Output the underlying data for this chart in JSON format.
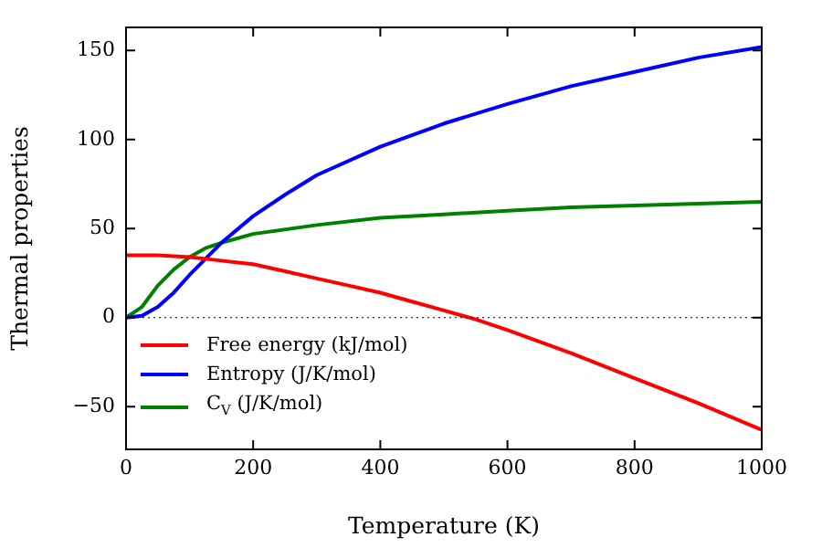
{
  "chart_data": {
    "type": "line",
    "xlabel": "Temperature (K)",
    "ylabel": "Thermal properties",
    "xlim": [
      0,
      1000
    ],
    "xticks": [
      0,
      200,
      400,
      600,
      800,
      1000
    ],
    "ylim": [
      -74,
      163
    ],
    "yticks": [
      -50,
      0,
      50,
      100,
      150
    ],
    "grid": false,
    "legend": "bottom left",
    "marker": "none",
    "line_style": "solid",
    "ref_lines": [
      {
        "axis": "y",
        "value": 0,
        "color": "#000000",
        "line_style": "dotted"
      }
    ],
    "series": [
      {
        "name": "Free energy (kJ/mol)",
        "color": "#ff0000",
        "x": [
          0,
          50,
          100,
          150,
          200,
          250,
          300,
          350,
          400,
          450,
          500,
          550,
          600,
          700,
          800,
          900,
          1000
        ],
        "values": [
          35,
          35,
          34,
          32,
          30,
          26,
          22,
          18,
          14,
          9,
          4,
          -1,
          -7,
          -20,
          -34,
          -48,
          -63
        ]
      },
      {
        "name": "Entropy (J/K/mol)",
        "color": "#0000ff",
        "x": [
          0,
          25,
          50,
          75,
          100,
          125,
          150,
          200,
          250,
          300,
          400,
          500,
          600,
          700,
          800,
          900,
          1000
        ],
        "values": [
          0,
          1,
          6,
          14,
          24,
          33,
          42,
          57,
          69,
          80,
          96,
          109,
          120,
          130,
          138,
          146,
          152
        ]
      },
      {
        "name": "C$_{V}$ (J/K/mol)",
        "color": "#008000",
        "x": [
          0,
          25,
          50,
          75,
          100,
          125,
          150,
          200,
          300,
          400,
          500,
          600,
          700,
          800,
          900,
          1000
        ],
        "values": [
          0,
          6,
          18,
          27,
          34,
          39,
          42,
          47,
          52,
          56,
          58,
          60,
          62,
          63,
          64,
          65
        ]
      }
    ]
  }
}
